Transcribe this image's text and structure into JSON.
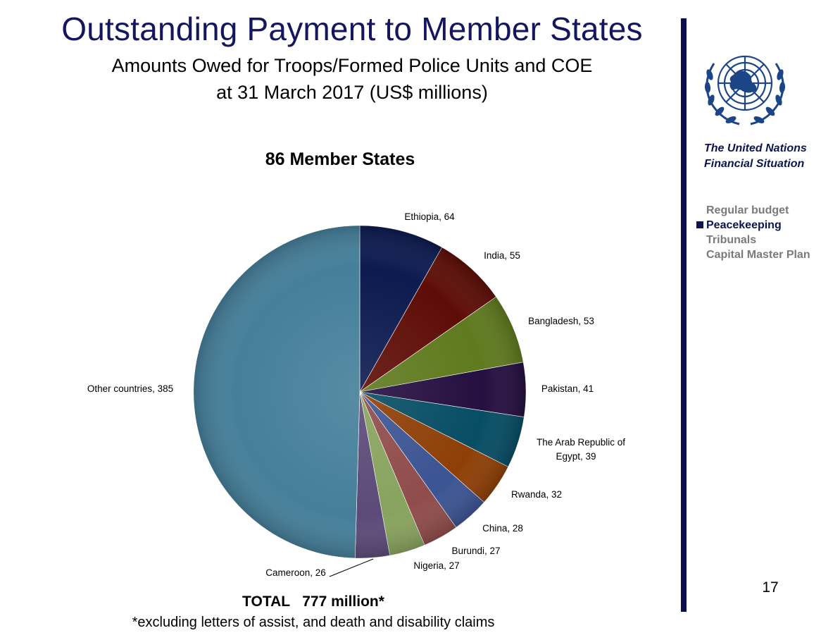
{
  "slide": {
    "title": "Outstanding Payment to Member States",
    "subtitle_line1": "Amounts Owed for Troops/Formed Police Units and COE",
    "subtitle_line2": "at 31 March 2017 (US$ millions)",
    "total": "TOTAL   777 million*",
    "footnote": "*excluding letters of assist, and death and disability claims",
    "page_number": "17"
  },
  "sidebar": {
    "title_line1": "The United Nations",
    "title_line2": "Financial Situation",
    "items": [
      {
        "label": "Regular budget",
        "active": false
      },
      {
        "label": "Peacekeeping",
        "active": true
      },
      {
        "label": "Tribunals",
        "active": false
      },
      {
        "label": "Capital Master Plan",
        "active": false
      }
    ]
  },
  "chart_data": {
    "type": "pie",
    "title": "86 Member States",
    "slices": [
      {
        "label": "Ethiopia",
        "value": 64,
        "color": "#0c1a4f"
      },
      {
        "label": "India",
        "value": 55,
        "color": "#5e0d06"
      },
      {
        "label": "Bangladesh",
        "value": 53,
        "color": "#5f7a1f"
      },
      {
        "label": "Pakistan",
        "value": 41,
        "color": "#250f40"
      },
      {
        "label": "The Arab Republic of Egypt",
        "value": 39,
        "color": "#074d64"
      },
      {
        "label": "Rwanda",
        "value": 32,
        "color": "#8e3f07"
      },
      {
        "label": "China",
        "value": 28,
        "color": "#3b5492"
      },
      {
        "label": "Burundi",
        "value": 27,
        "color": "#8f4c4a"
      },
      {
        "label": "Nigeria",
        "value": 27,
        "color": "#88a35e"
      },
      {
        "label": "Cameroon",
        "value": 26,
        "color": "#5c4a78"
      },
      {
        "label": "Other countries",
        "value": 385,
        "color": "#457f9a"
      }
    ],
    "data_labels": [
      "Ethiopia, 64",
      "India, 55",
      "Bangladesh, 53",
      "Pakistan, 41",
      "The Arab Republic of",
      "Egypt, 39",
      "Rwanda, 32",
      "China, 28",
      "Burundi, 27",
      "Nigeria, 27",
      "Cameroon, 26",
      "Other countries, 385"
    ]
  }
}
